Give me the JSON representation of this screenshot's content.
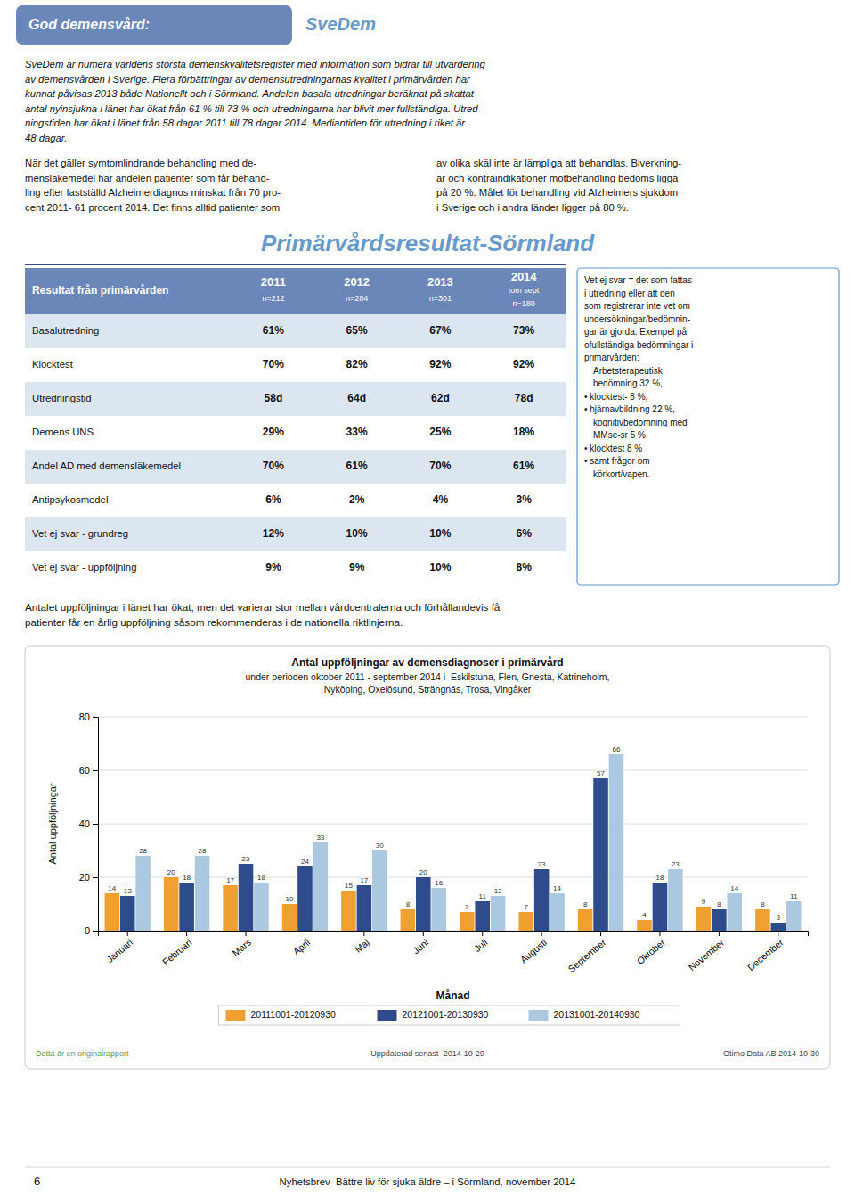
{
  "page": {
    "header_text": "God demensvård:",
    "header_text2": "SveDem",
    "body_paragraph": [
      "SveDem är numera världens största demenskvalitetsregister med information som bidrar till utvärdering",
      "av demensvården i Sverige. Flera förbättringar av demensutredningarnas kvalitet i primärvården har",
      "kunnat påvisas 2013 både Nationellt och i Sörmland. Andelen basala utredningar beräknat på skattat",
      "antal nyinsjukna i länet har ökat från 61 % till 73 % och utredningarna har blivit mer fullständiga. Utred-",
      "ningstiden har ökat i länet från 58 dagar 2011 till 78 dagar 2014. Mediantiden för utredning i riket är",
      "48 dagar."
    ],
    "body_col1": [
      "När det gäller symtomlindrande behandling med de-",
      "mensläkemedel har andelen patienter som får behand-",
      "ling efter fastställd Alzheimerdiagnos minskat från 70 pro-",
      "cent 2011- 61 procent 2014. Det finns alltid patienter som"
    ],
    "body_col2": [
      "av olika skäl inte är lämpliga att behandlas. Biverkning-",
      "ar och kontraindikationer motbehandling bedöms ligga",
      "på 20 %. Målet för behandling vid Alzheimers sjukdom",
      "i Sverige och i andra länder ligger på 80 %."
    ],
    "section_title": "Primärvårdsresultat-Sörmland",
    "table": {
      "row_label": "Resultat från primärvården",
      "col_headers": [
        [
          "2011",
          "n=212"
        ],
        [
          "2012",
          "n=284"
        ],
        [
          "2013",
          "n=301"
        ],
        [
          "2014",
          "tom sept",
          "n=180"
        ]
      ],
      "rows": [
        [
          "Basalutredning",
          "61%",
          "65%",
          "67%",
          "73%"
        ],
        [
          "Klocktest",
          "70%",
          "82%",
          "92%",
          "92%"
        ],
        [
          "Utredningstid",
          "58d",
          "64d",
          "62d",
          "78d"
        ],
        [
          "Demens UNS",
          "29%",
          "33%",
          "25%",
          "18%"
        ],
        [
          "Andel AD med demensläkemedel",
          "70%",
          "61%",
          "70%",
          "61%"
        ],
        [
          "Antipsykosmedel",
          "6%",
          "2%",
          "4%",
          "3%"
        ],
        [
          "Vet ej svar - grundreg",
          "12%",
          "10%",
          "10%",
          "6%"
        ],
        [
          "Vet ej svar - uppföljning",
          "9%",
          "9%",
          "10%",
          "8%"
        ]
      ]
    },
    "sidebar_lines": [
      "Vet ej svar = det som fattas",
      "i utredning eller att den",
      "som registrerar inte vet om",
      "undersökningar/bedömnin-",
      "gar är gjorda. Exempel på",
      "ofullständiga bedömningar i",
      "primärvården:"
    ],
    "sidebar_list": [
      "Arbetsterapeutisk",
      "bedömning 32 %,",
      "• klocktest- 8 %,",
      "• hjärnavbildning 22 %,",
      "kognitivbedömning med",
      "MMse-sr 5 %",
      "• klocktest 8 %",
      "• samt frågor om",
      "körkort/vapen."
    ],
    "followup_text": [
      "Antalet uppföljningar i länet har ökat, men det varierar stor mellan vårdcentralerna och förhållandevis få",
      "patienter får en årlig uppföljning såsom rekommenderas i de nationella riktlinjerna."
    ],
    "chart_footer_left": "Detta är en originalrapport",
    "chart_footer_mid": "Uppdaterad senast- 2014-10-29",
    "chart_footer_right": "Otimo Data AB 2014-10-30",
    "page_number": "6",
    "page_footer": "Nyhetsbrev  Bättre liv för sjuka äldre – i Sörmland, november 2014"
  },
  "chart_data": {
    "type": "bar",
    "title": "Antal uppföljningar av demensdiagnoser i primärvård",
    "subtitle": [
      "under perioden oktober 2011 - september 2014 i  Eskilstuna, Flen, Gnesta, Katrineholm,",
      "Nyköping, Oxelösund, Strängnäs, Trosa, Vingåker"
    ],
    "x_label": "Månad",
    "y_label": "Antal uppföljningar",
    "categories": [
      "Januari",
      "Februari",
      "Mars",
      "April",
      "Maj",
      "Juni",
      "Juli",
      "Augusti",
      "September",
      "Oktober",
      "November",
      "December"
    ],
    "series": [
      {
        "name": "20111001-20120930",
        "color": "#f0a030",
        "values": [
          14,
          20,
          17,
          10,
          15,
          8,
          7,
          7,
          8,
          4,
          9,
          8
        ]
      },
      {
        "name": "20121001-20130930",
        "color": "#2e4b8c",
        "values": [
          13,
          18,
          25,
          24,
          17,
          20,
          11,
          23,
          57,
          18,
          8,
          3
        ]
      },
      {
        "name": "20131001-20140930",
        "color": "#aac8e0",
        "values": [
          28,
          28,
          18,
          33,
          30,
          16,
          13,
          14,
          66,
          23,
          14,
          11
        ]
      }
    ],
    "ylim": [
      0,
      80
    ],
    "yticks": [
      0,
      20,
      40,
      60,
      80
    ],
    "grid": true,
    "legend": "bottom",
    "data_labels": true
  }
}
